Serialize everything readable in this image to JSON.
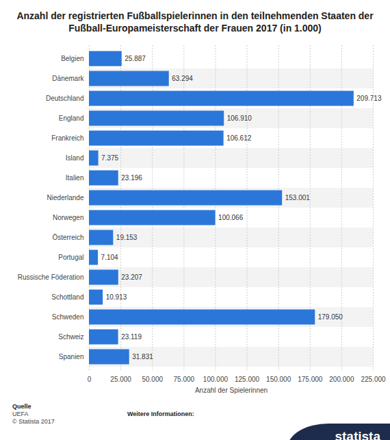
{
  "chart_data": {
    "type": "bar",
    "orientation": "horizontal",
    "title": "Anzahl der registrierten Fußballspielerinnen in den teilnehmenden Staaten der Fußball-Europameisterschaft der Frauen 2017 (in 1.000)",
    "x_label": "Anzahl der Spielerinnen",
    "categories": [
      "Belgien",
      "Dänemark",
      "Deutschland",
      "England",
      "Frankreich",
      "Island",
      "Italien",
      "Niederlande",
      "Norwegen",
      "Österreich",
      "Portugal",
      "Russische Föderation",
      "Schottland",
      "Schweden",
      "Schweiz",
      "Spanien"
    ],
    "values": [
      25887,
      63294,
      209713,
      106910,
      106612,
      7375,
      23196,
      153001,
      100066,
      19153,
      7104,
      23207,
      10913,
      179050,
      23119,
      31831
    ],
    "value_labels": [
      "25.887",
      "63.294",
      "209.713",
      "106.910",
      "106.612",
      "7.375",
      "23.196",
      "153.001",
      "100.066",
      "19.153",
      "7.104",
      "23.207",
      "10.913",
      "179.050",
      "23.119",
      "31.831"
    ],
    "data_labels": true,
    "color": "#2b77d9",
    "xlim": [
      0,
      225000
    ],
    "xticks": [
      0,
      {
        "value": 25000,
        "label": "25.000"
      },
      {
        "value": 50000,
        "label": "50.000"
      },
      {
        "value": 75000,
        "label": "75.000"
      },
      {
        "value": 100000,
        "label": "100.000"
      },
      {
        "value": 125000,
        "label": "125.000"
      },
      {
        "value": 150000,
        "label": "150.000"
      },
      {
        "value": 175000,
        "label": "175.000"
      },
      {
        "value": 200000,
        "label": "200.000"
      },
      {
        "value": 225000,
        "label": "225.000"
      }
    ],
    "grid": true,
    "source_label": "Quelle",
    "source": "UEFA",
    "copyright": "© Statista 2017",
    "more_info": "Weitere Informationen:",
    "brand": "statista"
  }
}
